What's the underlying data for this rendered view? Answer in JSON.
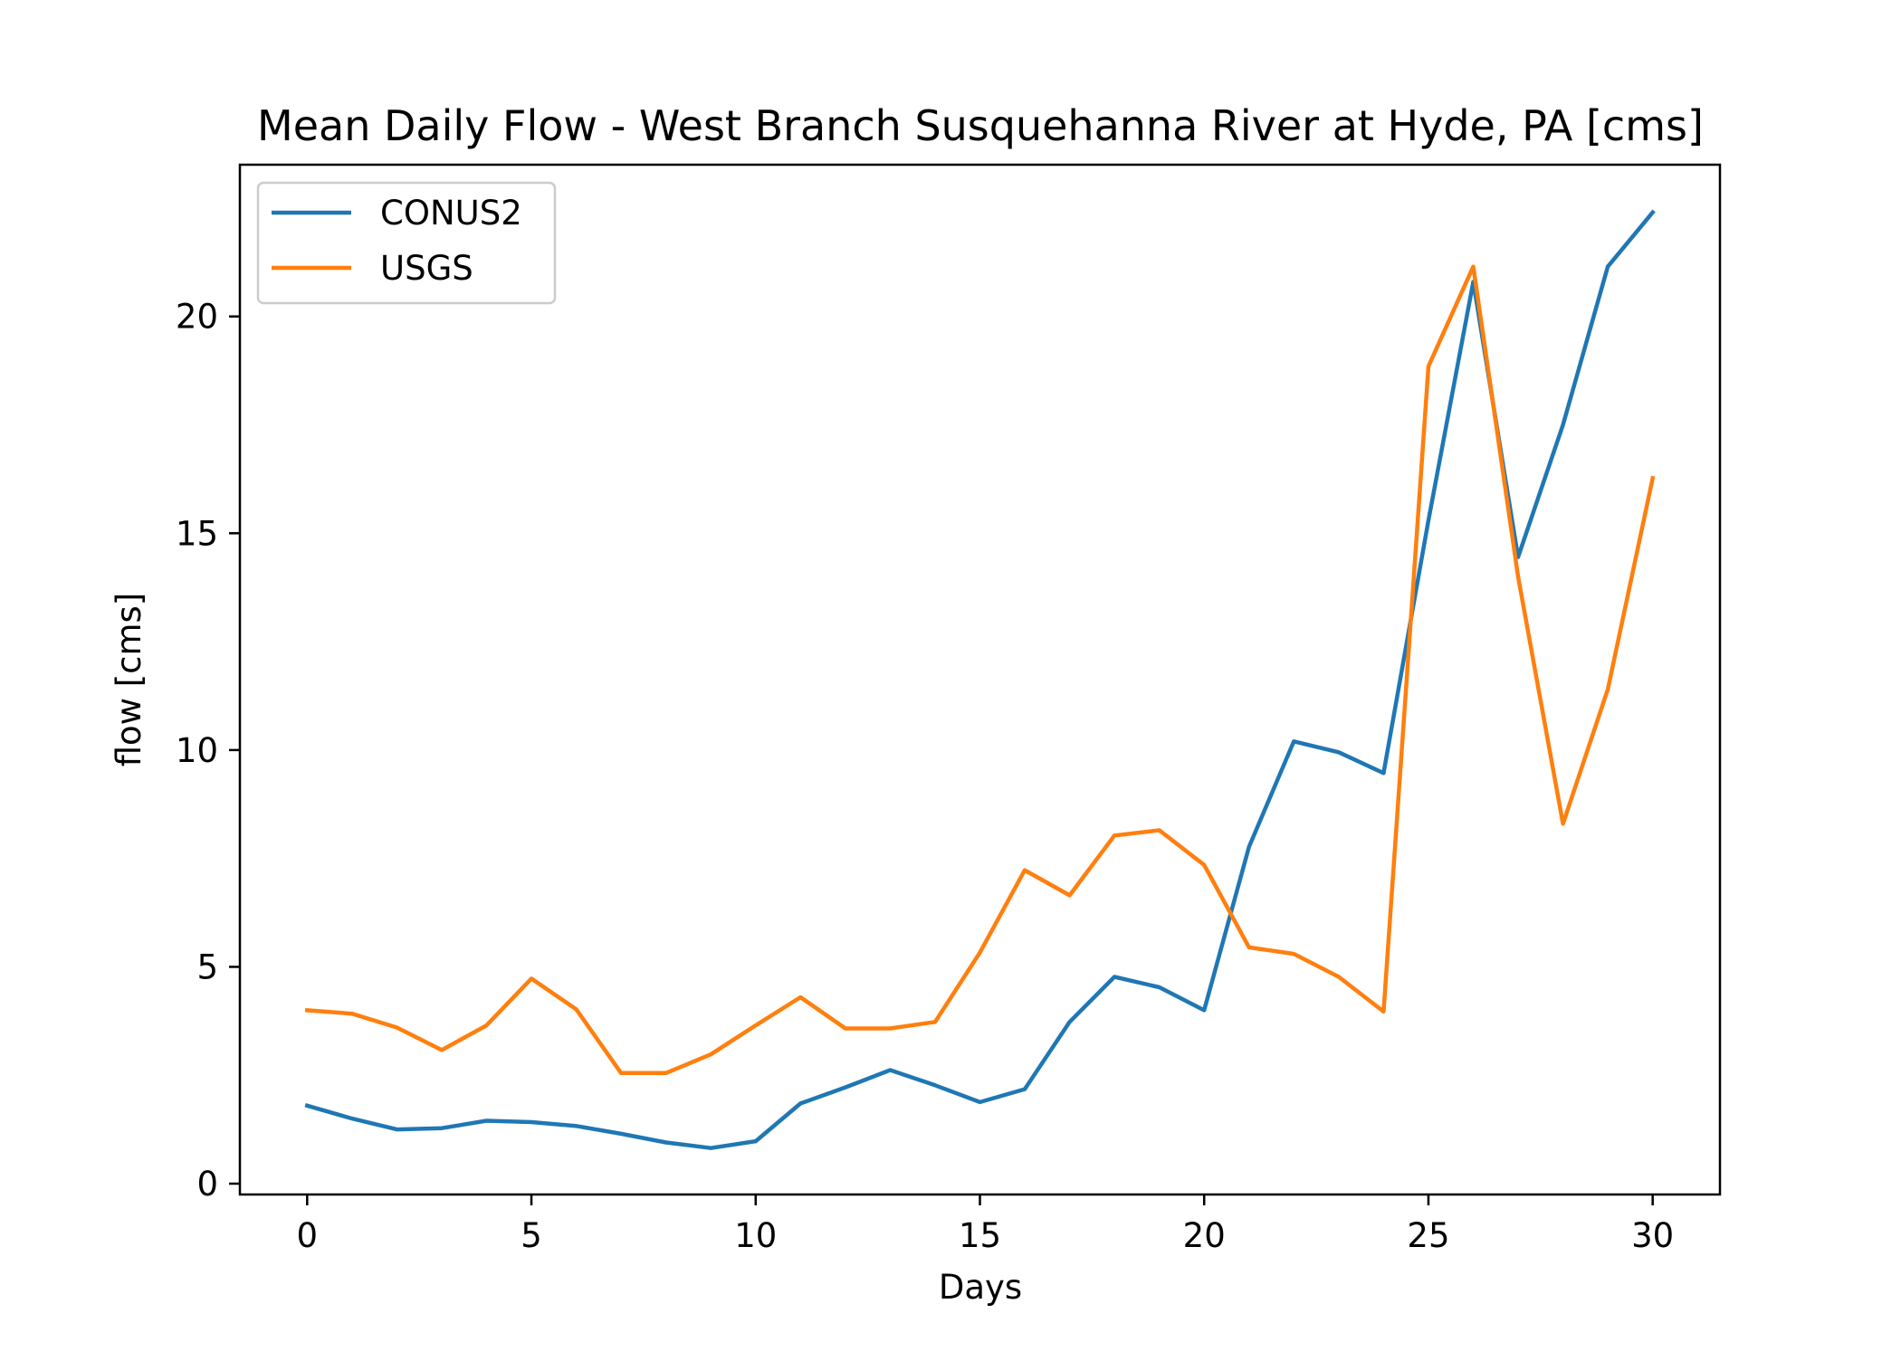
{
  "chart_data": {
    "type": "line",
    "title": "Mean Daily Flow - West Branch Susquehanna River at Hyde, PA [cms]",
    "xlabel": "Days",
    "ylabel": "flow [cms]",
    "xlim": [
      -1.5,
      31.5
    ],
    "ylim": [
      -0.25,
      23.5
    ],
    "xticks": [
      0,
      5,
      10,
      15,
      20,
      25,
      30
    ],
    "yticks": [
      0,
      5,
      10,
      15,
      20
    ],
    "grid": false,
    "legend_position": "upper-left",
    "x": [
      0,
      1,
      2,
      3,
      4,
      5,
      6,
      7,
      8,
      9,
      10,
      11,
      12,
      13,
      14,
      15,
      16,
      17,
      18,
      19,
      20,
      21,
      22,
      23,
      24,
      25,
      26,
      27,
      28,
      29,
      30
    ],
    "series": [
      {
        "name": "CONUS2",
        "color": "#1f77b4",
        "values": [
          1.8,
          1.5,
          1.25,
          1.28,
          1.45,
          1.42,
          1.33,
          1.15,
          0.95,
          0.82,
          0.98,
          1.85,
          2.22,
          2.62,
          2.27,
          1.88,
          2.18,
          3.73,
          4.77,
          4.53,
          4.0,
          7.77,
          10.2,
          9.95,
          9.47,
          15.3,
          20.8,
          14.45,
          17.5,
          21.15,
          22.4
        ]
      },
      {
        "name": "USGS",
        "color": "#ff7f0e",
        "values": [
          4.0,
          3.92,
          3.6,
          3.08,
          3.65,
          4.73,
          4.02,
          2.55,
          2.55,
          2.98,
          3.65,
          4.3,
          3.58,
          3.58,
          3.73,
          5.33,
          7.23,
          6.65,
          8.03,
          8.15,
          7.35,
          5.45,
          5.3,
          4.77,
          3.97,
          18.85,
          21.15,
          14.0,
          8.3,
          11.4,
          16.27
        ]
      }
    ]
  }
}
